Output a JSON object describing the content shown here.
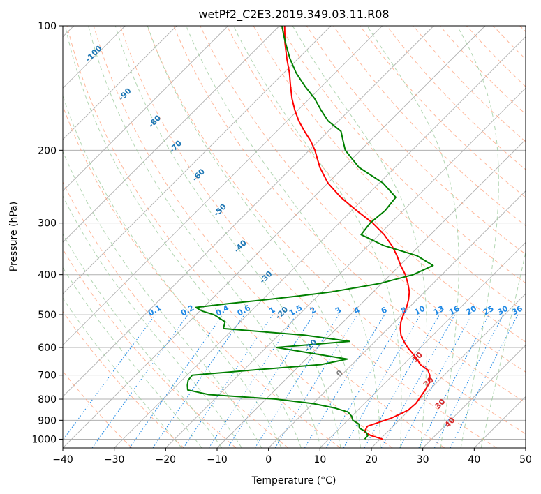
{
  "chart_data": {
    "type": "line",
    "chart_kind": "Skew-T log-P diagram",
    "title": "wetPf2_C2E3.2019.349.03.11.R08",
    "xlabel": "Temperature (°C)",
    "ylabel": "Pressure (hPa)",
    "xlim": [
      -40,
      50
    ],
    "ylim": [
      1050,
      100
    ],
    "y_scale": "log",
    "skew_degrees": 45,
    "grid": true,
    "x_ticks": [
      -40,
      -30,
      -20,
      -10,
      0,
      10,
      20,
      30,
      40,
      50
    ],
    "x_tick_labels": [
      "−40",
      "−30",
      "−20",
      "−10",
      "0",
      "10",
      "20",
      "30",
      "40",
      "50"
    ],
    "y_ticks": [
      100,
      200,
      300,
      400,
      500,
      600,
      700,
      800,
      900,
      1000
    ],
    "y_tick_labels": [
      "100",
      "200",
      "300",
      "400",
      "500",
      "600",
      "700",
      "800",
      "900",
      "1000"
    ],
    "series": [
      {
        "color": "#ff0000",
        "points": [
          [
            1000,
            20.5
          ],
          [
            980,
            17.5
          ],
          [
            960,
            15.5
          ],
          [
            930,
            15.0
          ],
          [
            910,
            16.5
          ],
          [
            890,
            18.0
          ],
          [
            870,
            19.0
          ],
          [
            850,
            19.8
          ],
          [
            820,
            20.0
          ],
          [
            790,
            19.6
          ],
          [
            760,
            19.2
          ],
          [
            730,
            18.6
          ],
          [
            700,
            17.2
          ],
          [
            680,
            15.8
          ],
          [
            660,
            13.3
          ],
          [
            640,
            11.6
          ],
          [
            620,
            9.6
          ],
          [
            600,
            7.5
          ],
          [
            580,
            5.6
          ],
          [
            560,
            3.8
          ],
          [
            540,
            2.4
          ],
          [
            520,
            1.2
          ],
          [
            500,
            0.3
          ],
          [
            480,
            -0.5
          ],
          [
            460,
            -1.6
          ],
          [
            440,
            -3.0
          ],
          [
            420,
            -4.9
          ],
          [
            400,
            -7.1
          ],
          [
            380,
            -9.8
          ],
          [
            360,
            -12.4
          ],
          [
            340,
            -15.4
          ],
          [
            320,
            -19.0
          ],
          [
            300,
            -23.5
          ],
          [
            280,
            -29.0
          ],
          [
            260,
            -34.7
          ],
          [
            240,
            -40.0
          ],
          [
            220,
            -44.6
          ],
          [
            200,
            -48.9
          ],
          [
            190,
            -51.5
          ],
          [
            180,
            -54.6
          ],
          [
            170,
            -57.7
          ],
          [
            160,
            -60.6
          ],
          [
            150,
            -63.4
          ],
          [
            140,
            -66.1
          ],
          [
            130,
            -68.9
          ],
          [
            120,
            -72.2
          ],
          [
            110,
            -75.6
          ],
          [
            100,
            -79.0
          ]
        ]
      },
      {
        "color": "#008000",
        "points": [
          [
            1000,
            17.0
          ],
          [
            980,
            16.9
          ],
          [
            960,
            15.8
          ],
          [
            940,
            13.8
          ],
          [
            920,
            13.0
          ],
          [
            900,
            11.0
          ],
          [
            880,
            10.0
          ],
          [
            860,
            8.5
          ],
          [
            840,
            5.0
          ],
          [
            820,
            0.0
          ],
          [
            800,
            -8.0
          ],
          [
            780,
            -22.0
          ],
          [
            760,
            -27.0
          ],
          [
            740,
            -28.0
          ],
          [
            720,
            -28.8
          ],
          [
            700,
            -29.0
          ],
          [
            680,
            -18.0
          ],
          [
            660,
            -6.0
          ],
          [
            640,
            -2.0
          ],
          [
            620,
            -10.0
          ],
          [
            600,
            -18.0
          ],
          [
            580,
            -5.0
          ],
          [
            560,
            -15.0
          ],
          [
            540,
            -32.0
          ],
          [
            520,
            -33.0
          ],
          [
            500,
            -36.5
          ],
          [
            490,
            -39.5
          ],
          [
            480,
            -41.5
          ],
          [
            470,
            -36.0
          ],
          [
            460,
            -29.5
          ],
          [
            450,
            -23.5
          ],
          [
            440,
            -18.0
          ],
          [
            420,
            -10.3
          ],
          [
            400,
            -5.6
          ],
          [
            380,
            -3.5
          ],
          [
            360,
            -8.5
          ],
          [
            340,
            -17.0
          ],
          [
            320,
            -23.5
          ],
          [
            300,
            -24.0
          ],
          [
            280,
            -23.5
          ],
          [
            260,
            -24.0
          ],
          [
            240,
            -29.3
          ],
          [
            220,
            -37.0
          ],
          [
            200,
            -43.0
          ],
          [
            190,
            -45.2
          ],
          [
            180,
            -47.5
          ],
          [
            170,
            -52.0
          ],
          [
            160,
            -55.5
          ],
          [
            150,
            -59.0
          ],
          [
            140,
            -63.3
          ],
          [
            130,
            -67.6
          ],
          [
            120,
            -71.6
          ],
          [
            110,
            -75.5
          ],
          [
            105,
            -77.5
          ],
          [
            100,
            -79.5
          ]
        ]
      }
    ],
    "dry_adiabat_labels": [
      "-100",
      "-90",
      "-80",
      "-70",
      "-60",
      "-50",
      "-40",
      "-30",
      "-20",
      "-10",
      "0"
    ],
    "moist_adiabat_labels": [
      "10",
      "20",
      "30",
      "40"
    ],
    "mixing_ratio_labels": [
      "0.1",
      "0.2",
      "0.4",
      "0.6",
      "1",
      "1.5",
      "2",
      "3",
      "4",
      "6",
      "8",
      "10",
      "13",
      "16",
      "20",
      "25",
      "30",
      "36"
    ],
    "colors": {
      "temperature": "#ff0000",
      "dewpoint": "#008000",
      "isotherm": "#b0b0b0",
      "isobar": "#b0b0b0",
      "dry_adiabat": "#ffa07a",
      "moist_adiabat": "#98c898",
      "mixing_ratio": "#1e88e5",
      "dry_label": "#1f77b4",
      "moist_label": "#d62728"
    }
  }
}
